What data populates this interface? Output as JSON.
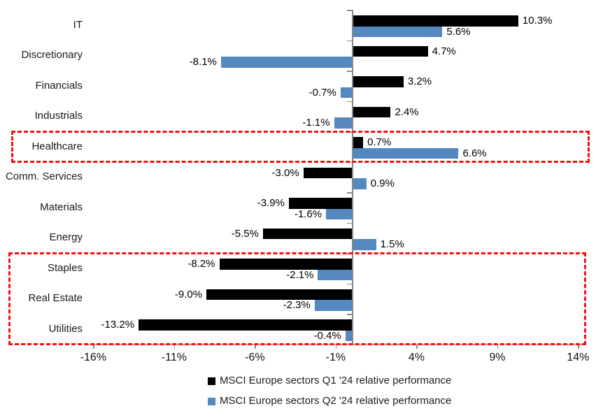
{
  "chart_data": {
    "type": "bar",
    "orientation": "horizontal",
    "title": "",
    "xlabel": "",
    "ylabel": "",
    "grid": false,
    "legend_position": "bottom",
    "categories": [
      "IT",
      "Discretionary",
      "Financials",
      "Industrials",
      "Healthcare",
      "Comm. Services",
      "Materials",
      "Energy",
      "Staples",
      "Real Estate",
      "Utilities"
    ],
    "series": [
      {
        "name": "MSCI Europe sectors Q1 '24 relative performance",
        "color": "#000000",
        "values": [
          10.3,
          4.7,
          3.2,
          2.4,
          0.7,
          -3.0,
          -3.9,
          -5.5,
          -8.2,
          -9.0,
          -13.2
        ],
        "labels": [
          "10.3%",
          "4.7%",
          "3.2%",
          "2.4%",
          "0.7%",
          "-3.0%",
          "-3.9%",
          "-5.5%",
          "-8.2%",
          "-9.0%",
          "-13.2%"
        ]
      },
      {
        "name": "MSCI Europe sectors Q2 '24 relative performance",
        "color": "#5588BE",
        "values": [
          5.6,
          -8.1,
          -0.7,
          -1.1,
          6.6,
          0.9,
          -1.6,
          1.5,
          -2.1,
          -2.3,
          -0.4
        ],
        "labels": [
          "5.6%",
          "-8.1%",
          "-0.7%",
          "-1.1%",
          "6.6%",
          "0.9%",
          "-1.6%",
          "1.5%",
          "-2.1%",
          "-2.3%",
          "-0.4%"
        ]
      }
    ],
    "x_axis": {
      "min": -17.5,
      "max": 15.1,
      "ticks": [
        -16,
        -11,
        -6,
        -1,
        4,
        9,
        14
      ],
      "tick_labels": [
        "-16%",
        "-11%",
        "-6%",
        "-1%",
        "4%",
        "9%",
        "14%"
      ]
    },
    "highlight_boxes": [
      {
        "rows": [
          "Healthcare"
        ],
        "color": "#fb0d0d"
      },
      {
        "rows": [
          "Staples",
          "Real Estate",
          "Utilities"
        ],
        "color": "#fb0d0d"
      }
    ]
  },
  "colors": {
    "q1_bar": "#000000",
    "q2_bar": "#5588BE",
    "axis": "#898989",
    "highlight": "#fb0d0d",
    "background": "#FFFFFF",
    "text": "#1a1a1a"
  }
}
